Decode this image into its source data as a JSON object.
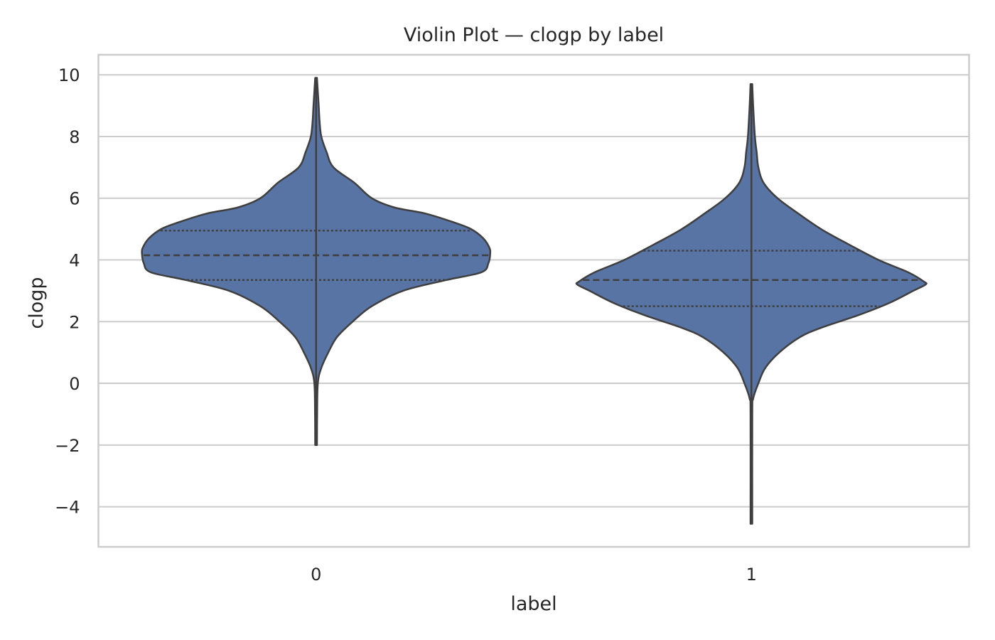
{
  "chart_data": {
    "type": "violin",
    "title": "Violin Plot — clogp by label",
    "xlabel": "label",
    "ylabel": "clogp",
    "ylim": [
      -5.3,
      10.65
    ],
    "y_ticks": [
      10,
      8,
      6,
      4,
      2,
      0,
      -2,
      -4
    ],
    "y_tick_labels": [
      "10",
      "8",
      "6",
      "4",
      "2",
      "0",
      "−2",
      "−4"
    ],
    "grid": "horizontal",
    "colors": {
      "fill": "#5874a5",
      "edge": "#3f3f3f",
      "grid": "#cccccc"
    },
    "categories": [
      "0",
      "1"
    ],
    "violins": [
      {
        "category": "0",
        "min": -2.0,
        "max": 9.9,
        "q1": 3.35,
        "median": 4.15,
        "q3": 4.95,
        "density_profile": [
          [
            9.9,
            0.005
          ],
          [
            9.0,
            0.015
          ],
          [
            8.5,
            0.02
          ],
          [
            8.0,
            0.03
          ],
          [
            7.5,
            0.06
          ],
          [
            7.0,
            0.1
          ],
          [
            6.5,
            0.22
          ],
          [
            6.0,
            0.32
          ],
          [
            5.7,
            0.45
          ],
          [
            5.5,
            0.63
          ],
          [
            5.2,
            0.8
          ],
          [
            5.0,
            0.89
          ],
          [
            4.7,
            0.96
          ],
          [
            4.4,
            0.995
          ],
          [
            4.2,
            1.0
          ],
          [
            3.9,
            0.99
          ],
          [
            3.6,
            0.95
          ],
          [
            3.35,
            0.75
          ],
          [
            3.0,
            0.5
          ],
          [
            2.5,
            0.32
          ],
          [
            2.0,
            0.21
          ],
          [
            1.5,
            0.12
          ],
          [
            1.0,
            0.07
          ],
          [
            0.5,
            0.03
          ],
          [
            0.0,
            0.01
          ],
          [
            -1.0,
            0.006
          ],
          [
            -2.0,
            0.005
          ]
        ]
      },
      {
        "category": "1",
        "min": -4.55,
        "max": 9.7,
        "q1": 2.5,
        "median": 3.35,
        "q3": 4.3,
        "density_profile": [
          [
            9.7,
            0.005
          ],
          [
            9.0,
            0.01
          ],
          [
            8.0,
            0.02
          ],
          [
            7.5,
            0.03
          ],
          [
            7.0,
            0.04
          ],
          [
            6.5,
            0.07
          ],
          [
            6.0,
            0.15
          ],
          [
            5.5,
            0.27
          ],
          [
            5.0,
            0.4
          ],
          [
            4.5,
            0.56
          ],
          [
            4.0,
            0.73
          ],
          [
            3.6,
            0.9
          ],
          [
            3.3,
            0.99
          ],
          [
            3.2,
            1.0
          ],
          [
            3.0,
            0.93
          ],
          [
            2.6,
            0.79
          ],
          [
            2.2,
            0.61
          ],
          [
            1.8,
            0.4
          ],
          [
            1.5,
            0.28
          ],
          [
            1.0,
            0.16
          ],
          [
            0.5,
            0.08
          ],
          [
            0.0,
            0.04
          ],
          [
            -0.5,
            0.01
          ],
          [
            -1.0,
            0.005
          ],
          [
            -4.55,
            0.005
          ]
        ]
      }
    ]
  }
}
